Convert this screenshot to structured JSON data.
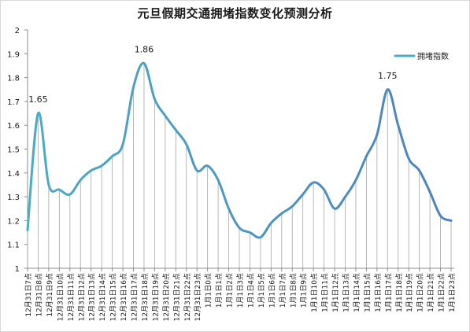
{
  "chart_data": {
    "type": "line",
    "title": "元旦假期交通拥堵指数变化预测分析",
    "xlabel": "",
    "ylabel": "",
    "ylim": [
      1,
      2
    ],
    "yticks": [
      "1",
      "1.1",
      "1.2",
      "1.3",
      "1.4",
      "1.5",
      "1.6",
      "1.7",
      "1.8",
      "1.9",
      "2"
    ],
    "grid": "vertical drop lines",
    "legend_position": "right",
    "categories": [
      "12月31日7点",
      "12月31日8点",
      "12月31日9点",
      "12月31日10点",
      "12月31日11点",
      "12月31日12点",
      "12月31日13点",
      "12月31日14点",
      "12月31日15点",
      "12月31日16点",
      "12月31日17点",
      "12月31日18点",
      "12月31日19点",
      "12月31日20点",
      "12月31日21点",
      "12月31日22点",
      "12月31日23点",
      "1月1日0点",
      "1月1日1点",
      "1月1日2点",
      "1月1日3点",
      "1月1日4点",
      "1月1日5点",
      "1月1日6点",
      "1月1日7点",
      "1月1日8点",
      "1月1日9点",
      "1月1日10点",
      "1月1日11点",
      "1月1日12点",
      "1月1日13点",
      "1月1日14点",
      "1月1日15点",
      "1月1日16点",
      "1月1日17点",
      "1月1日18点",
      "1月1日19点",
      "1月1日20点",
      "1月1日21点",
      "1月1日22点",
      "1月1日23点"
    ],
    "series": [
      {
        "name": "拥堵指数",
        "values": [
          1.16,
          1.65,
          1.35,
          1.33,
          1.31,
          1.37,
          1.41,
          1.43,
          1.47,
          1.52,
          1.76,
          1.86,
          1.71,
          1.64,
          1.58,
          1.52,
          1.41,
          1.43,
          1.37,
          1.25,
          1.17,
          1.15,
          1.13,
          1.19,
          1.23,
          1.26,
          1.31,
          1.36,
          1.33,
          1.25,
          1.3,
          1.37,
          1.47,
          1.56,
          1.75,
          1.6,
          1.46,
          1.41,
          1.32,
          1.22,
          1.2
        ]
      }
    ],
    "annotations": [
      {
        "index": 1,
        "text": "1.65"
      },
      {
        "index": 11,
        "text": "1.86"
      },
      {
        "index": 34,
        "text": "1.75"
      }
    ],
    "colors": {
      "line_start": "#4bacc6",
      "line_end": "#4f81bd",
      "drop_line": "#a6a6a6",
      "axis": "#8c8c8c",
      "text": "#1a1a1a"
    }
  }
}
